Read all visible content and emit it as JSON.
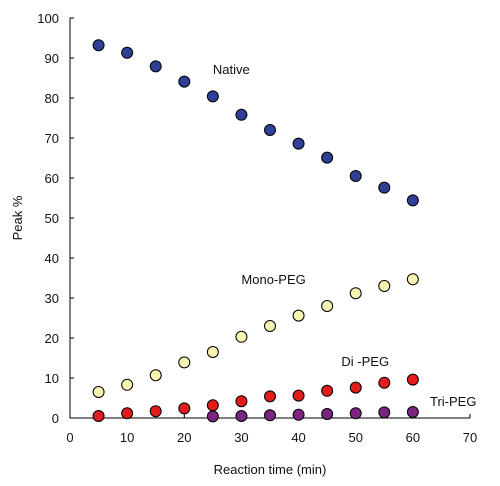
{
  "chart_data": {
    "type": "scatter",
    "xlabel": "Reaction time (min)",
    "ylabel": "Peak %",
    "xlim": [
      0,
      70
    ],
    "ylim": [
      0,
      100
    ],
    "xticks": [
      0,
      10,
      20,
      30,
      40,
      50,
      60,
      70
    ],
    "yticks": [
      0,
      10,
      20,
      30,
      40,
      50,
      60,
      70,
      80,
      90,
      100
    ],
    "grid": false,
    "legend": "none",
    "series": [
      {
        "name": "Native",
        "color": "#2f3f96",
        "label_at": [
          25,
          86
        ],
        "x": [
          5,
          10,
          15,
          20,
          25,
          30,
          35,
          40,
          45,
          50,
          55,
          60
        ],
        "y": [
          93.2,
          91.3,
          87.9,
          84.1,
          80.4,
          75.8,
          72.0,
          68.6,
          65.1,
          60.5,
          57.6,
          54.4
        ]
      },
      {
        "name": "Mono-PEG",
        "color": "#f7f3b0",
        "label_at": [
          30,
          33.5
        ],
        "x": [
          5,
          10,
          15,
          20,
          25,
          30,
          35,
          40,
          45,
          50,
          55,
          60
        ],
        "y": [
          6.5,
          8.3,
          10.7,
          13.9,
          16.5,
          20.3,
          23.0,
          25.6,
          28.0,
          31.2,
          33.0,
          34.7
        ]
      },
      {
        "name": "Di -PEG",
        "color": "#e21c1c",
        "label_at": [
          47.5,
          13
        ],
        "x": [
          5,
          10,
          15,
          20,
          25,
          30,
          35,
          40,
          45,
          50,
          55,
          60
        ],
        "y": [
          0.5,
          1.2,
          1.7,
          2.4,
          3.2,
          4.2,
          5.4,
          5.6,
          6.8,
          7.6,
          8.8,
          9.6
        ]
      },
      {
        "name": "Tri-PEG",
        "color": "#7a2580",
        "label_at": [
          63,
          3
        ],
        "x": [
          25,
          30,
          35,
          40,
          45,
          50,
          55,
          60
        ],
        "y": [
          0.4,
          0.5,
          0.7,
          0.8,
          1.0,
          1.2,
          1.4,
          1.5
        ]
      }
    ]
  }
}
